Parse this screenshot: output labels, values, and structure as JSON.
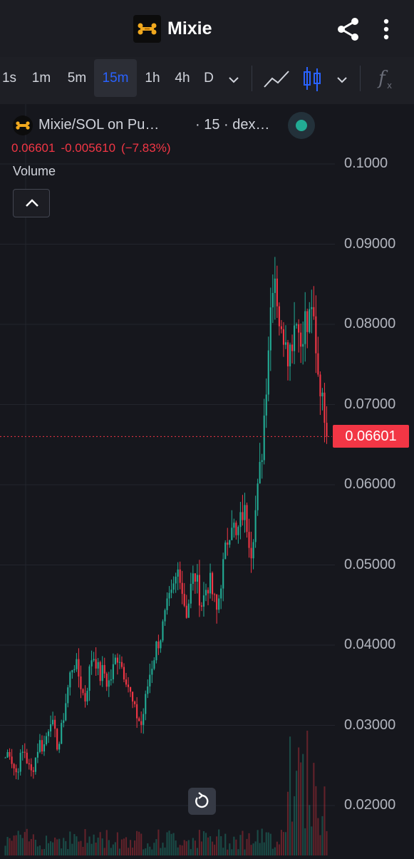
{
  "app": {
    "title": "Mixie",
    "logo_icon": "mixie-bone-logo",
    "share_icon": "share-icon",
    "more_icon": "more-vertical-icon"
  },
  "toolbar": {
    "timeframes": [
      "1s",
      "1m",
      "5m",
      "15m",
      "1h",
      "4h",
      "D"
    ],
    "active_timeframe": "15m",
    "more_timeframes_icon": "chevron-down-icon",
    "line_chart_icon": "line-chart-icon",
    "candles_icon": "candlestick-icon",
    "chart_type_dropdown_icon": "chevron-down-icon",
    "indicators_icon": "function-icon"
  },
  "legend": {
    "symbol": "Mixie/SOL on Pu…",
    "interval_source": "· 15 · dex…",
    "price": "0.06601",
    "change": "-0.005610",
    "change_pct": "(−7.83%)",
    "volume_label": "Volume",
    "collapse_icon": "chevron-up-icon"
  },
  "price_tag": "0.06601",
  "reset_icon": "reset-icon",
  "colors": {
    "up": "#22ab94",
    "down": "#f23645",
    "accent": "#2962ff",
    "background": "#16171d"
  },
  "chart_data": {
    "type": "candlestick",
    "interval": "15m",
    "last_price": 0.06601,
    "ylim": [
      0.0182,
      0.1018
    ],
    "y_ticks": [
      "0.1000",
      "0.09000",
      "0.08000",
      "0.07000",
      "0.06000",
      "0.05000",
      "0.04000",
      "0.03000",
      "0.02000"
    ],
    "grid": true,
    "close_path": [
      0.026,
      0.027,
      0.025,
      0.024,
      0.026,
      0.027,
      0.025,
      0.024,
      0.026,
      0.028,
      0.027,
      0.029,
      0.031,
      0.029,
      0.027,
      0.03,
      0.033,
      0.036,
      0.038,
      0.037,
      0.035,
      0.033,
      0.036,
      0.039,
      0.038,
      0.036,
      0.037,
      0.035,
      0.036,
      0.038,
      0.039,
      0.037,
      0.036,
      0.034,
      0.032,
      0.031,
      0.03,
      0.033,
      0.036,
      0.038,
      0.04,
      0.041,
      0.043,
      0.045,
      0.046,
      0.048,
      0.05,
      0.046,
      0.044,
      0.047,
      0.049,
      0.047,
      0.045,
      0.047,
      0.048,
      0.046,
      0.044,
      0.048,
      0.051,
      0.054,
      0.056,
      0.053,
      0.055,
      0.057,
      0.055,
      0.052,
      0.056,
      0.06,
      0.065,
      0.073,
      0.081,
      0.088,
      0.083,
      0.078,
      0.08,
      0.076,
      0.079,
      0.082,
      0.077,
      0.081,
      0.079,
      0.083,
      0.076,
      0.072,
      0.07211,
      0.06601
    ]
  }
}
